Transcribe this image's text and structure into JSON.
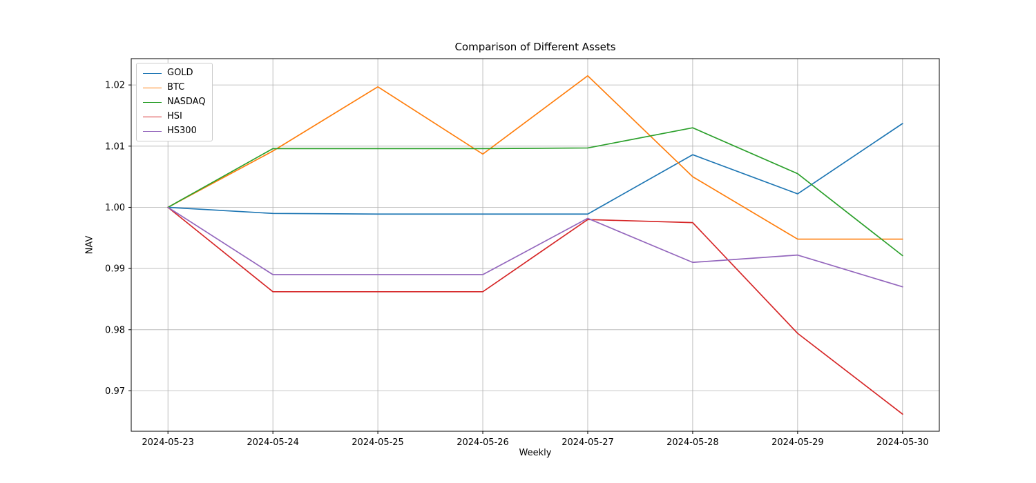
{
  "chart_data": {
    "type": "line",
    "title": "Comparison of Different Assets",
    "xlabel": "Weekly",
    "ylabel": "NAV",
    "categories": [
      "2024-05-23",
      "2024-05-24",
      "2024-05-25",
      "2024-05-26",
      "2024-05-27",
      "2024-05-28",
      "2024-05-29",
      "2024-05-30"
    ],
    "yticks": [
      "0.97",
      "0.98",
      "0.99",
      "1.00",
      "1.01",
      "1.02"
    ],
    "ylim": [
      0.9634,
      1.0243
    ],
    "grid": true,
    "legend_position": "upper left",
    "grid_color": "#b0b0b0",
    "series": [
      {
        "name": "GOLD",
        "color": "#1f77b4",
        "values": [
          1.0,
          0.999,
          0.9989,
          0.9989,
          0.9989,
          1.0086,
          1.0022,
          1.0137
        ]
      },
      {
        "name": "BTC",
        "color": "#ff7f0e",
        "values": [
          1.0,
          1.0092,
          1.0197,
          1.0087,
          1.0215,
          1.005,
          0.9948,
          0.9948
        ]
      },
      {
        "name": "NASDAQ",
        "color": "#2ca02c",
        "values": [
          1.0,
          1.0096,
          1.0096,
          1.0096,
          1.0097,
          1.013,
          1.0055,
          0.9921
        ]
      },
      {
        "name": "HSI",
        "color": "#d62728",
        "values": [
          1.0,
          0.9862,
          0.9862,
          0.9862,
          0.998,
          0.9975,
          0.9794,
          0.9662
        ]
      },
      {
        "name": "HS300",
        "color": "#9467bd",
        "values": [
          1.0,
          0.989,
          0.989,
          0.989,
          0.9982,
          0.991,
          0.9922,
          0.987
        ]
      }
    ]
  }
}
